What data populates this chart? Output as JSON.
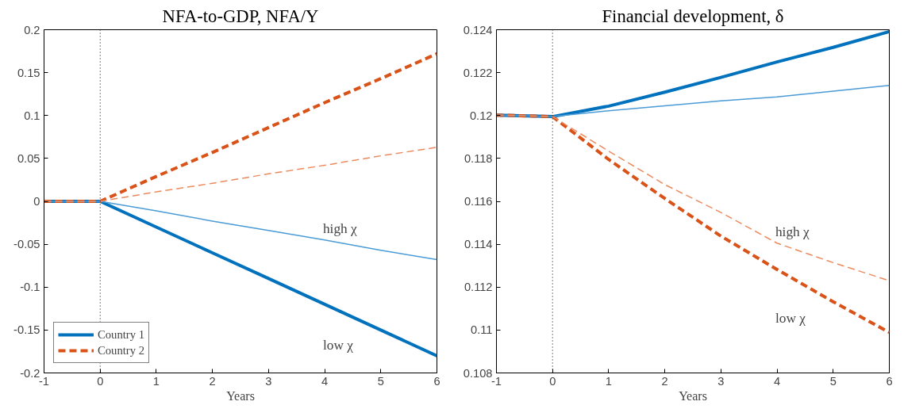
{
  "chart_data": [
    {
      "type": "line",
      "title": "NFA-to-GDP, NFA/Y",
      "xlabel": "Years",
      "x": [
        -1,
        0,
        1,
        2,
        3,
        4,
        5,
        6
      ],
      "series": [
        {
          "name": "Country 1",
          "color": "#0072bd",
          "line_style": "solid",
          "values": [
            0,
            0,
            -0.03,
            -0.06,
            -0.09,
            -0.12,
            -0.15,
            -0.18
          ]
        },
        {
          "name": "Country 2",
          "color": "#d95319",
          "line_style": "dashed",
          "values": [
            0,
            0,
            0.029,
            0.057,
            0.086,
            0.115,
            0.143,
            0.172
          ]
        },
        {
          "color": "#4a9bd6",
          "line_style": "solid",
          "values": [
            0,
            0,
            -0.011,
            -0.023,
            -0.034,
            -0.045,
            -0.057,
            -0.068
          ]
        },
        {
          "color": "#ec8a5e",
          "line_style": "dashed",
          "values": [
            0,
            0,
            0.011,
            0.021,
            0.032,
            0.042,
            0.053,
            0.063
          ]
        }
      ],
      "xlim": [
        -1,
        6
      ],
      "xticks": [
        -1,
        0,
        1,
        2,
        3,
        4,
        5,
        6
      ],
      "ylim": [
        -0.2,
        0.2
      ],
      "yticks": [
        -0.2,
        -0.15,
        -0.1,
        -0.05,
        0,
        0.05,
        0.1,
        0.15,
        0.2
      ],
      "ref_lines": [
        {
          "axis": "x",
          "value": 0,
          "label": null,
          "color": "#000000",
          "line_style": "dotted"
        }
      ],
      "annotations": [
        "high χ",
        "low χ"
      ],
      "legend": "bottom left",
      "grid": false
    },
    {
      "type": "line",
      "title": "Financial development, δ",
      "xlabel": "Years",
      "x": [
        -1,
        0,
        1,
        2,
        3,
        4,
        5,
        6
      ],
      "series": [
        {
          "color": "#0072bd",
          "line_style": "solid",
          "values": [
            0.12002,
            0.11995,
            0.12044,
            0.12109,
            0.12178,
            0.1225,
            0.12318,
            0.12391
          ]
        },
        {
          "color": "#d95319",
          "line_style": "dashed",
          "values": [
            0.12002,
            0.11995,
            0.11795,
            0.11613,
            0.11438,
            0.11282,
            0.11132,
            0.10989
          ]
        },
        {
          "color": "#4a9bd6",
          "line_style": "solid",
          "values": [
            0.12002,
            0.11995,
            0.12022,
            0.12045,
            0.12068,
            0.12087,
            0.12114,
            0.1214
          ]
        },
        {
          "color": "#ec8a5e",
          "line_style": "dashed",
          "values": [
            0.12002,
            0.11995,
            0.11834,
            0.11678,
            0.11548,
            0.11405,
            0.11314,
            0.1123
          ]
        }
      ],
      "xlim": [
        -1,
        6
      ],
      "xticks": [
        -1,
        0,
        1,
        2,
        3,
        4,
        5,
        6
      ],
      "ylim": [
        0.108,
        0.124
      ],
      "yticks": [
        0.108,
        0.11,
        0.112,
        0.114,
        0.116,
        0.118,
        0.12,
        0.122,
        0.124
      ],
      "ref_lines": [
        {
          "axis": "x",
          "value": 0,
          "label": null,
          "color": "#000000",
          "line_style": "dotted"
        }
      ],
      "annotations": [
        "high χ",
        "low χ"
      ],
      "legend": false,
      "grid": false
    }
  ]
}
